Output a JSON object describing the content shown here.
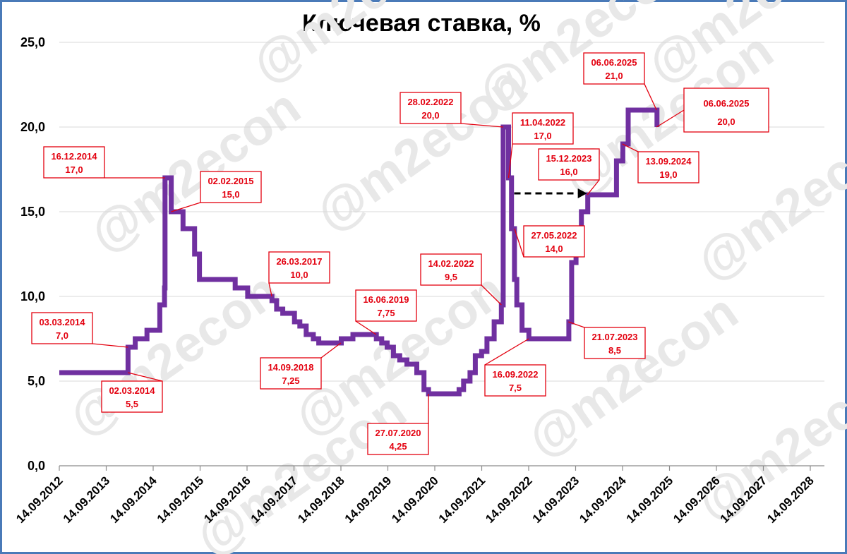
{
  "chart_data": {
    "type": "line",
    "title": "Ключевая ставка, %",
    "watermark": "@m2econ",
    "colors": {
      "series": "#7030a0",
      "annotation": "#e3000f",
      "axis": "#000000",
      "grid": "#d9d9d9",
      "arrow": "#000000",
      "frame": "#4a7ab8"
    },
    "ylim": [
      0,
      25
    ],
    "y_ticks": [
      "0,0",
      "5,0",
      "10,0",
      "15,0",
      "20,0",
      "25,0"
    ],
    "x_ticks": [
      "14.09.2012",
      "14.09.2013",
      "14.09.2014",
      "14.09.2015",
      "14.09.2016",
      "14.09.2017",
      "14.09.2018",
      "14.09.2019",
      "14.09.2020",
      "14.09.2021",
      "14.09.2022",
      "14.09.2023",
      "14.09.2024",
      "14.09.2025",
      "14.09.2026",
      "14.09.2027",
      "14.09.2028"
    ],
    "grid": "horizontal",
    "series": [
      {
        "points": [
          [
            "2012-09-14",
            5.5
          ],
          [
            "2014-03-03",
            7.0
          ],
          [
            "2014-04-28",
            7.5
          ],
          [
            "2014-07-28",
            8.0
          ],
          [
            "2014-11-05",
            9.5
          ],
          [
            "2014-12-12",
            10.5
          ],
          [
            "2014-12-16",
            17.0
          ],
          [
            "2015-02-02",
            15.0
          ],
          [
            "2015-05-05",
            14.0
          ],
          [
            "2015-08-03",
            12.5
          ],
          [
            "2015-09-10",
            11.0
          ],
          [
            "2016-06-14",
            10.5
          ],
          [
            "2016-09-19",
            10.0
          ],
          [
            "2017-03-27",
            9.75
          ],
          [
            "2017-05-02",
            9.25
          ],
          [
            "2017-06-19",
            9.0
          ],
          [
            "2017-09-18",
            8.5
          ],
          [
            "2017-10-30",
            8.25
          ],
          [
            "2017-12-18",
            7.75
          ],
          [
            "2018-02-12",
            7.5
          ],
          [
            "2018-03-26",
            7.25
          ],
          [
            "2018-09-17",
            7.5
          ],
          [
            "2018-12-17",
            7.75
          ],
          [
            "2019-06-17",
            7.5
          ],
          [
            "2019-07-29",
            7.25
          ],
          [
            "2019-09-09",
            7.0
          ],
          [
            "2019-10-28",
            6.5
          ],
          [
            "2019-12-16",
            6.25
          ],
          [
            "2020-02-10",
            6.0
          ],
          [
            "2020-04-27",
            5.5
          ],
          [
            "2020-06-22",
            4.5
          ],
          [
            "2020-07-27",
            4.25
          ],
          [
            "2021-03-22",
            4.5
          ],
          [
            "2021-04-26",
            5.0
          ],
          [
            "2021-06-15",
            5.5
          ],
          [
            "2021-07-26",
            6.5
          ],
          [
            "2021-09-13",
            6.75
          ],
          [
            "2021-10-25",
            7.5
          ],
          [
            "2021-12-20",
            8.5
          ],
          [
            "2022-02-14",
            9.5
          ],
          [
            "2022-02-28",
            20.0
          ],
          [
            "2022-04-11",
            17.0
          ],
          [
            "2022-05-04",
            14.0
          ],
          [
            "2022-05-27",
            11.0
          ],
          [
            "2022-06-14",
            9.5
          ],
          [
            "2022-07-25",
            8.0
          ],
          [
            "2022-09-16",
            7.5
          ],
          [
            "2023-07-24",
            8.5
          ],
          [
            "2023-08-15",
            12.0
          ],
          [
            "2023-09-18",
            13.0
          ],
          [
            "2023-10-30",
            15.0
          ],
          [
            "2023-12-18",
            16.0
          ],
          [
            "2024-07-29",
            18.0
          ],
          [
            "2024-09-16",
            19.0
          ],
          [
            "2024-10-28",
            21.0
          ],
          [
            "2025-06-09",
            20.0
          ]
        ]
      }
    ],
    "arrow": {
      "from": [
        "2022-04-11",
        16.0
      ],
      "to": [
        "2023-12-18",
        16.0
      ],
      "style": "dashed"
    },
    "annotations": [
      {
        "date": "03.03.2014",
        "value": "7,0",
        "px": [
          "2014-03-03",
          7.0
        ]
      },
      {
        "date": "02.03.2014",
        "value": "5,5",
        "px": [
          "2014-03-02",
          5.5
        ]
      },
      {
        "date": "16.12.2014",
        "value": "17,0",
        "px": [
          "2014-12-16",
          17.0
        ]
      },
      {
        "date": "02.02.2015",
        "value": "15,0",
        "px": [
          "2015-02-02",
          15.0
        ]
      },
      {
        "date": "26.03.2017",
        "value": "10,0",
        "px": [
          "2017-03-26",
          10.0
        ]
      },
      {
        "date": "14.09.2018",
        "value": "7,25",
        "px": [
          "2018-09-14",
          7.25
        ]
      },
      {
        "date": "16.06.2019",
        "value": "7,75",
        "px": [
          "2019-06-16",
          7.75
        ]
      },
      {
        "date": "27.07.2020",
        "value": "4,25",
        "px": [
          "2020-07-27",
          4.25
        ]
      },
      {
        "date": "14.02.2022",
        "value": "9,5",
        "px": [
          "2022-02-14",
          9.5
        ]
      },
      {
        "date": "28.02.2022",
        "value": "20,0",
        "px": [
          "2022-02-28",
          20.0
        ]
      },
      {
        "date": "11.04.2022",
        "value": "17,0",
        "px": [
          "2022-04-11",
          17.0
        ]
      },
      {
        "date": "27.05.2022",
        "value": "14,0",
        "px": [
          "2022-05-27",
          14.0
        ]
      },
      {
        "date": "16.09.2022",
        "value": "7,5",
        "px": [
          "2022-09-16",
          7.5
        ]
      },
      {
        "date": "21.07.2023",
        "value": "8,5",
        "px": [
          "2023-07-21",
          8.5
        ]
      },
      {
        "date": "15.12.2023",
        "value": "16,0",
        "px": [
          "2023-12-15",
          16.0
        ]
      },
      {
        "date": "13.09.2024",
        "value": "19,0",
        "px": [
          "2024-09-13",
          19.0
        ]
      },
      {
        "date": "06.06.2025",
        "value": "21,0",
        "px": [
          "2025-06-06",
          21.0
        ]
      },
      {
        "date": "06.06.2025",
        "value": "20,0",
        "px": [
          "2025-06-06",
          20.0
        ],
        "highlight": true
      }
    ]
  }
}
